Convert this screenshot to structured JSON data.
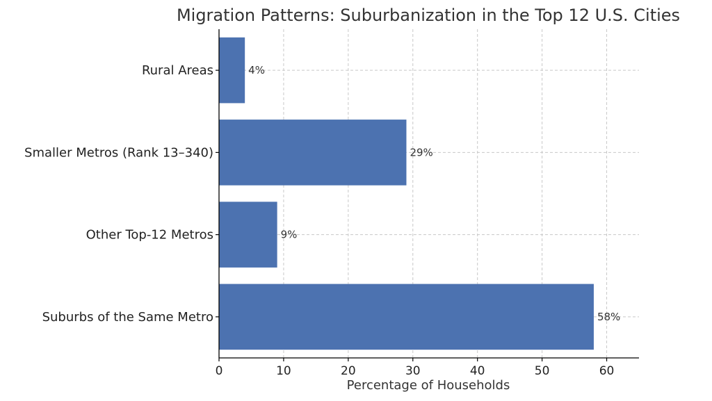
{
  "chart_data": {
    "type": "bar",
    "orientation": "horizontal",
    "title": "Migration Patterns: Suburbanization in the Top 12 U.S. Cities",
    "xlabel": "Percentage of Households",
    "ylabel": "",
    "categories": [
      "Suburbs of the Same Metro",
      "Other Top-12 Metros",
      "Smaller Metros (Rank 13–340)",
      "Rural Areas"
    ],
    "values": [
      58,
      9,
      29,
      4
    ],
    "data_labels": [
      "58%",
      "9%",
      "29%",
      "4%"
    ],
    "xlim": [
      0,
      65
    ],
    "xticks": [
      0,
      10,
      20,
      30,
      40,
      50,
      60
    ],
    "xtick_labels": [
      "0",
      "10",
      "20",
      "30",
      "40",
      "50",
      "60"
    ],
    "grid": true,
    "bar_color": "#4C72B0"
  }
}
